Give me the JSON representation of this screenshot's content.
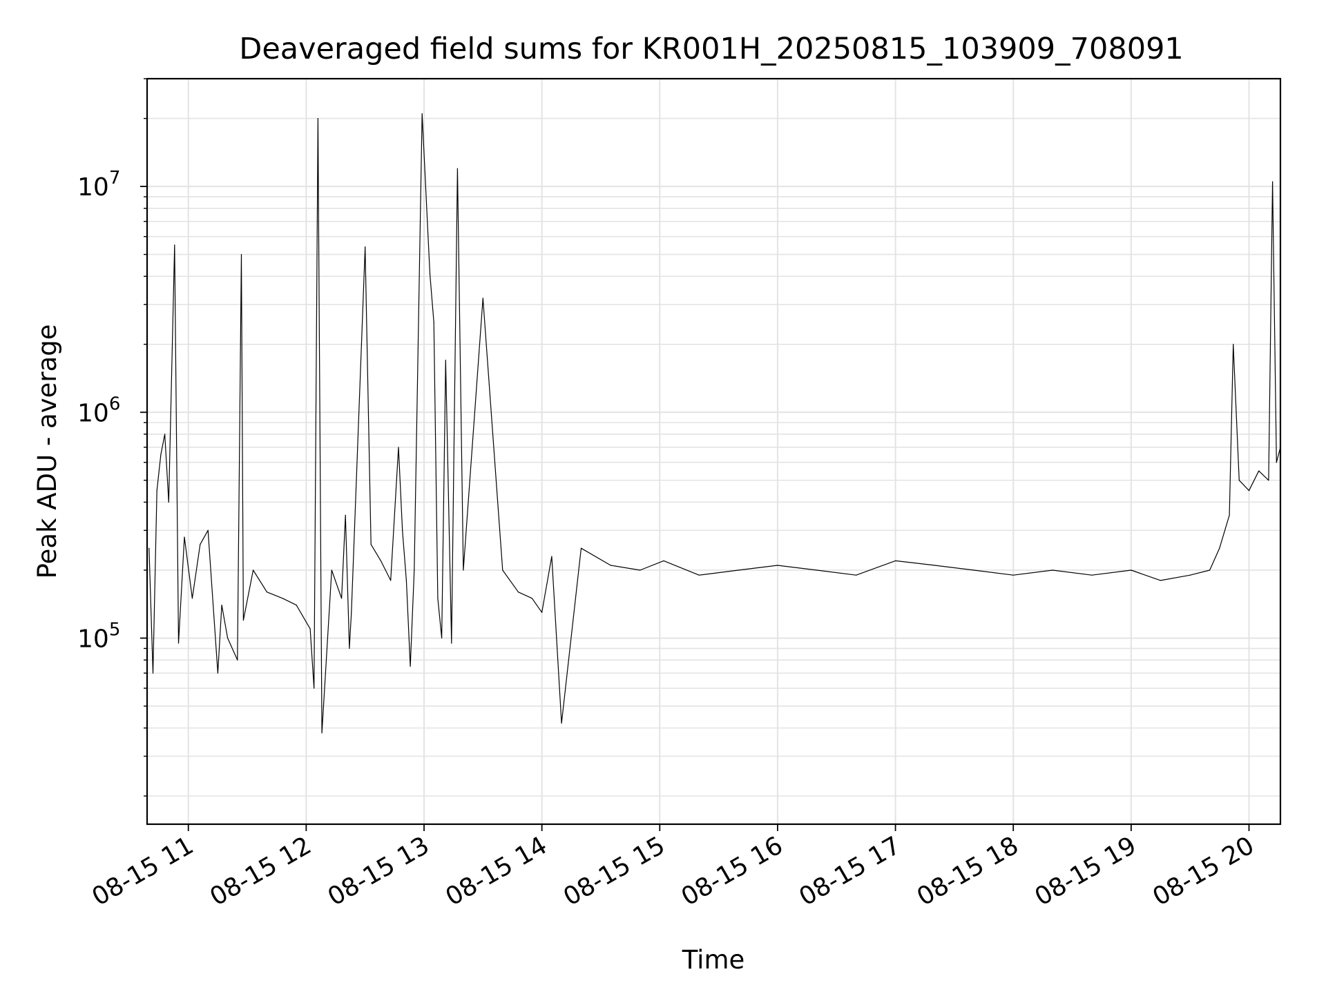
{
  "chart_data": {
    "type": "line",
    "title": "Deaveraged field sums for KR001H_20250815_103909_708091",
    "xlabel": "Time",
    "ylabel": "Peak ADU - average",
    "y_scale": "log",
    "ylim": [
      15000,
      30000000
    ],
    "xlim": [
      "2025-08-15 10:39",
      "2025-08-15 20:16"
    ],
    "grid": true,
    "line_color": "#000000",
    "grid_color": "#e3e3e3",
    "x_ticks": [
      {
        "label": "08-15 11",
        "value": "2025-08-15 11:00"
      },
      {
        "label": "08-15 12",
        "value": "2025-08-15 12:00"
      },
      {
        "label": "08-15 13",
        "value": "2025-08-15 13:00"
      },
      {
        "label": "08-15 14",
        "value": "2025-08-15 14:00"
      },
      {
        "label": "08-15 15",
        "value": "2025-08-15 15:00"
      },
      {
        "label": "08-15 16",
        "value": "2025-08-15 16:00"
      },
      {
        "label": "08-15 17",
        "value": "2025-08-15 17:00"
      },
      {
        "label": "08-15 18",
        "value": "2025-08-15 18:00"
      },
      {
        "label": "08-15 19",
        "value": "2025-08-15 19:00"
      },
      {
        "label": "08-15 20",
        "value": "2025-08-15 20:00"
      }
    ],
    "y_ticks": [
      {
        "base": "10",
        "exp": "5",
        "value": 100000
      },
      {
        "base": "10",
        "exp": "6",
        "value": 1000000
      },
      {
        "base": "10",
        "exp": "7",
        "value": 10000000
      }
    ],
    "series": [
      {
        "x": [
          "2025-08-15 10:40",
          "2025-08-15 10:42",
          "2025-08-15 10:44",
          "2025-08-15 10:46",
          "2025-08-15 10:48",
          "2025-08-15 10:50",
          "2025-08-15 10:53",
          "2025-08-15 10:55",
          "2025-08-15 10:58",
          "2025-08-15 11:02",
          "2025-08-15 11:06",
          "2025-08-15 11:10",
          "2025-08-15 11:15",
          "2025-08-15 11:17",
          "2025-08-15 11:20",
          "2025-08-15 11:25",
          "2025-08-15 11:27",
          "2025-08-15 11:28",
          "2025-08-15 11:33",
          "2025-08-15 11:40",
          "2025-08-15 11:48",
          "2025-08-15 11:55",
          "2025-08-15 12:02",
          "2025-08-15 12:04",
          "2025-08-15 12:06",
          "2025-08-15 12:08",
          "2025-08-15 12:13",
          "2025-08-15 12:18",
          "2025-08-15 12:20",
          "2025-08-15 12:22",
          "2025-08-15 12:23",
          "2025-08-15 12:30",
          "2025-08-15 12:33",
          "2025-08-15 12:38",
          "2025-08-15 12:43",
          "2025-08-15 12:47",
          "2025-08-15 12:49",
          "2025-08-15 12:51",
          "2025-08-15 12:53",
          "2025-08-15 12:55",
          "2025-08-15 12:59",
          "2025-08-15 13:03",
          "2025-08-15 13:05",
          "2025-08-15 13:07",
          "2025-08-15 13:09",
          "2025-08-15 13:11",
          "2025-08-15 13:14",
          "2025-08-15 13:17",
          "2025-08-15 13:20",
          "2025-08-15 13:30",
          "2025-08-15 13:40",
          "2025-08-15 13:48",
          "2025-08-15 13:55",
          "2025-08-15 14:00",
          "2025-08-15 14:05",
          "2025-08-15 14:10",
          "2025-08-15 14:20",
          "2025-08-15 14:35",
          "2025-08-15 14:50",
          "2025-08-15 15:02",
          "2025-08-15 15:20",
          "2025-08-15 15:40",
          "2025-08-15 16:00",
          "2025-08-15 16:20",
          "2025-08-15 16:40",
          "2025-08-15 17:00",
          "2025-08-15 17:20",
          "2025-08-15 17:40",
          "2025-08-15 18:00",
          "2025-08-15 18:20",
          "2025-08-15 18:40",
          "2025-08-15 19:00",
          "2025-08-15 19:15",
          "2025-08-15 19:30",
          "2025-08-15 19:40",
          "2025-08-15 19:45",
          "2025-08-15 19:50",
          "2025-08-15 19:52",
          "2025-08-15 19:55",
          "2025-08-15 20:00",
          "2025-08-15 20:05",
          "2025-08-15 20:10",
          "2025-08-15 20:12",
          "2025-08-15 20:14",
          "2025-08-15 20:16"
        ],
        "y": [
          250000,
          70000,
          450000,
          650000,
          800000,
          400000,
          5500000,
          95000,
          280000,
          150000,
          260000,
          300000,
          70000,
          140000,
          100000,
          80000,
          5000000,
          120000,
          200000,
          160000,
          150000,
          140000,
          110000,
          60000,
          20000000,
          38000,
          200000,
          150000,
          350000,
          90000,
          130000,
          5400000,
          260000,
          220000,
          180000,
          700000,
          300000,
          180000,
          75000,
          200000,
          21000000,
          4100000,
          2500000,
          150000,
          100000,
          1700000,
          95000,
          12000000,
          200000,
          3200000,
          200000,
          160000,
          150000,
          130000,
          230000,
          42000,
          250000,
          210000,
          200000,
          220000,
          190000,
          200000,
          210000,
          200000,
          190000,
          220000,
          210000,
          200000,
          190000,
          200000,
          190000,
          200000,
          180000,
          190000,
          200000,
          250000,
          350000,
          2000000,
          500000,
          450000,
          550000,
          500000,
          10500000,
          600000,
          700000
        ]
      }
    ]
  }
}
